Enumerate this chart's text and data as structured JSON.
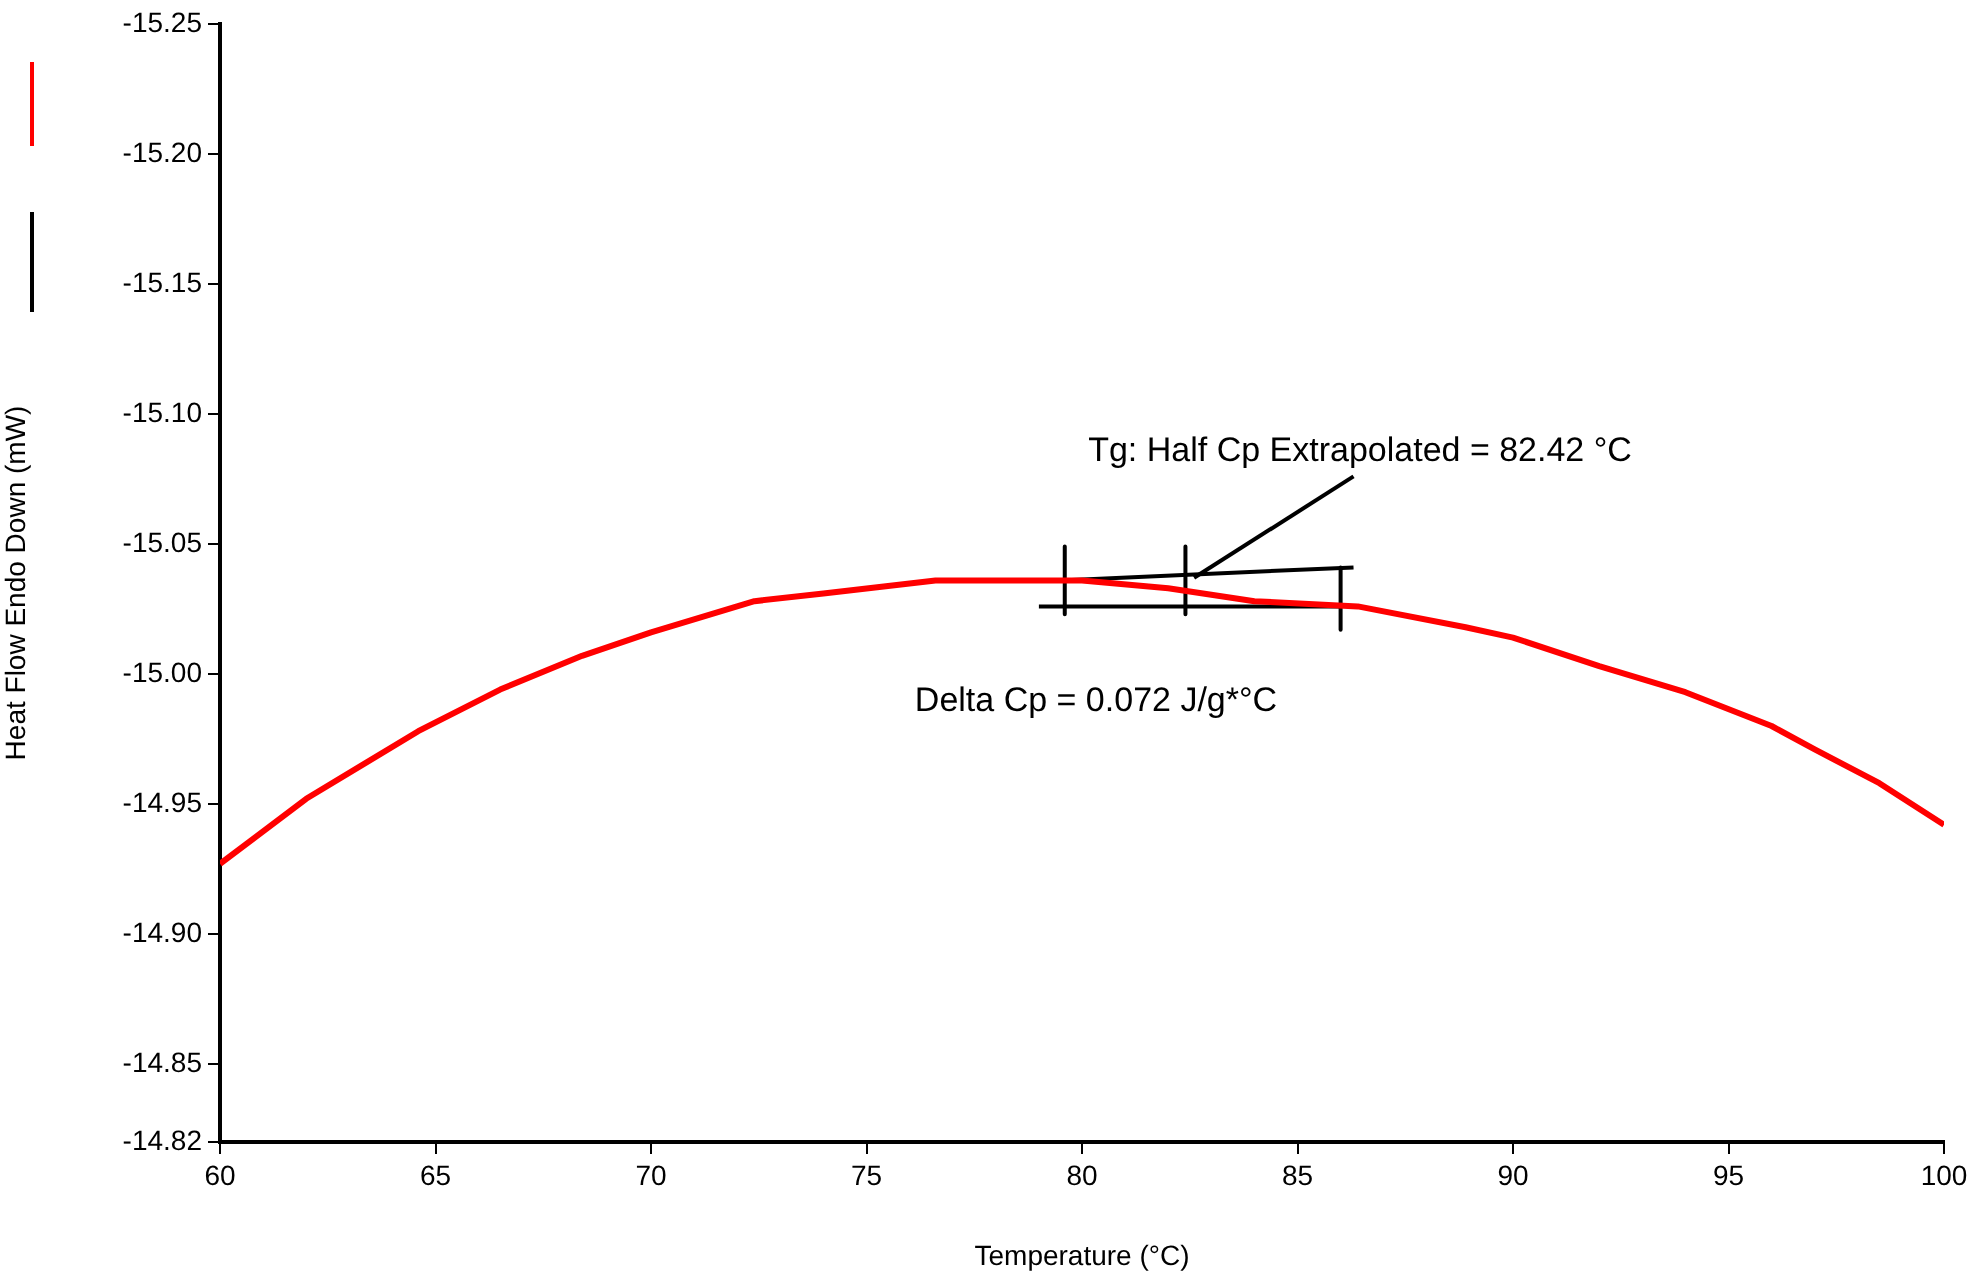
{
  "chart_data": {
    "type": "line",
    "xlabel": "Temperature (°C)",
    "ylabel": "Heat Flow Endo Down (mW)",
    "xlim": [
      60,
      100
    ],
    "xticks": [
      60,
      65,
      70,
      75,
      80,
      85,
      90,
      95,
      100
    ],
    "ylim": [
      -14.82,
      -15.25
    ],
    "yticks": [
      -15.25,
      {
        "value": -15.2,
        "label": "-15.20"
      },
      -15.15,
      {
        "value": -15.1,
        "label": "-15.10"
      },
      -15.05,
      {
        "value": -15.0,
        "label": "-15.00"
      },
      -14.95,
      {
        "value": -14.9,
        "label": "-14.90"
      },
      -14.85,
      -14.82
    ],
    "grid": false,
    "legend": false,
    "marker": "none",
    "line_style": "solid",
    "series": [
      {
        "color": "#ff0000",
        "x": [
          60,
          62,
          64.6,
          66.5,
          68.4,
          70,
          72.4,
          74,
          76.6,
          78,
          80,
          82,
          84,
          86.4,
          88.9,
          90,
          92,
          94,
          96,
          97,
          98.5,
          100
        ],
        "values": [
          -14.927,
          -14.952,
          -14.978,
          -14.994,
          -15.007,
          -15.016,
          -15.028,
          -15.031,
          -15.036,
          -15.036,
          -15.036,
          -15.033,
          -15.028,
          -15.026,
          -15.018,
          -15.014,
          -15.003,
          -14.993,
          -14.98,
          -14.971,
          -14.958,
          -14.942
        ]
      },
      {
        "color": "#000000",
        "x": [
          79.5,
          86.3
        ],
        "values": [
          -15.036,
          -15.041
        ]
      },
      {
        "color": "#000000",
        "x": [
          79,
          86
        ],
        "values": [
          -15.026,
          -15.026
        ]
      },
      {
        "color": "#000000",
        "x": [
          82.6,
          86.3
        ],
        "values": [
          -15.037,
          -15.076
        ]
      },
      {
        "color": "#000000",
        "x": [
          79.6,
          79.6
        ],
        "values": [
          -15.049,
          -15.023
        ]
      },
      {
        "color": "#000000",
        "x": [
          82.4,
          82.4
        ],
        "values": [
          -15.049,
          -15.023
        ]
      },
      {
        "color": "#000000",
        "x": [
          86,
          86
        ],
        "values": [
          -15.041,
          -15.017
        ]
      }
    ],
    "annotations": [
      "Tg: Half Cp Extrapolated = 82.42 °C",
      "Delta Cp = 0.072 J/g*°C"
    ]
  }
}
